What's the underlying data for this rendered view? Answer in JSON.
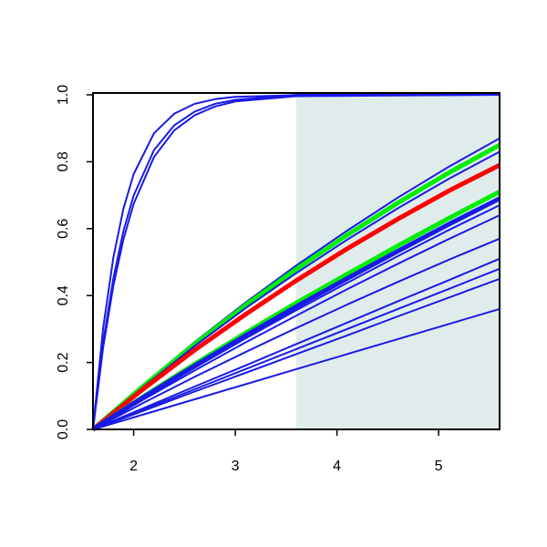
{
  "chart_data": {
    "type": "line",
    "x": [
      1.6,
      2.1,
      2.6,
      3.1,
      3.6,
      4.1,
      4.6,
      5.1,
      5.6
    ],
    "xlim": [
      1.6,
      5.6
    ],
    "ylim": [
      0,
      1
    ],
    "xticks": [
      2,
      3,
      4,
      5
    ],
    "yticks": [
      {
        "value": 0,
        "label": "0.0"
      },
      0.2,
      0.4,
      0.6,
      0.8,
      {
        "value": 1,
        "label": "1.0"
      }
    ],
    "shaded_region": {
      "xlim": [
        3.6,
        5.6
      ],
      "color": "#e0ecec"
    },
    "series": [
      {
        "color": "#1a1ae6",
        "x": [
          1.6,
          1.7,
          1.8,
          1.9,
          2.0,
          2.2,
          2.4,
          2.6,
          2.8,
          3.0,
          3.6,
          5.6
        ],
        "values": [
          0,
          0.302,
          0.513,
          0.66,
          0.763,
          0.885,
          0.944,
          0.973,
          0.987,
          0.994,
          0.999,
          1.0
        ]
      },
      {
        "color": "#1a1ae6",
        "x": [
          1.6,
          1.7,
          1.8,
          1.9,
          2.0,
          2.2,
          2.4,
          2.6,
          2.8,
          3.0,
          3.6,
          5.6
        ],
        "values": [
          0,
          0.259,
          0.451,
          0.593,
          0.699,
          0.835,
          0.909,
          0.95,
          0.973,
          0.985,
          1.0,
          1.0
        ]
      },
      {
        "color": "#1a1ae6",
        "x": [
          1.6,
          1.7,
          1.8,
          1.9,
          2.0,
          2.2,
          2.4,
          2.6,
          2.8,
          3.0,
          3.6,
          5.6
        ],
        "values": [
          0,
          0.244,
          0.429,
          0.568,
          0.674,
          0.814,
          0.894,
          0.939,
          0.965,
          0.98,
          0.996,
          1.0
        ]
      },
      {
        "color": "#1a1ae6",
        "values": [
          0,
          0.134,
          0.261,
          0.379,
          0.49,
          0.594,
          0.693,
          0.785,
          0.87
        ]
      },
      {
        "color": "#00ee00",
        "emphasis": true,
        "values": [
          0,
          0.131,
          0.255,
          0.371,
          0.479,
          0.581,
          0.677,
          0.767,
          0.85
        ]
      },
      {
        "color": "#1a1ae6",
        "values": [
          0,
          0.128,
          0.249,
          0.362,
          0.467,
          0.567,
          0.661,
          0.749,
          0.83
        ]
      },
      {
        "color": "#ff0000",
        "emphasis": true,
        "values": [
          0,
          0.122,
          0.237,
          0.344,
          0.445,
          0.54,
          0.629,
          0.713,
          0.79
        ]
      },
      {
        "color": "#00ee00",
        "emphasis": true,
        "values": [
          0,
          0.099,
          0.195,
          0.288,
          0.378,
          0.464,
          0.549,
          0.631,
          0.71
        ]
      },
      {
        "color": "#1a1ae6",
        "emphasis": true,
        "values": [
          0,
          0.097,
          0.19,
          0.28,
          0.367,
          0.451,
          0.533,
          0.613,
          0.69
        ]
      },
      {
        "color": "#1a1ae6",
        "values": [
          0,
          0.094,
          0.184,
          0.272,
          0.356,
          0.438,
          0.518,
          0.596,
          0.67
        ]
      },
      {
        "color": "#1a1ae6",
        "values": [
          0,
          0.09,
          0.176,
          0.26,
          0.34,
          0.419,
          0.495,
          0.569,
          0.64
        ]
      },
      {
        "color": "#1a1ae6",
        "values": [
          0,
          0.08,
          0.157,
          0.231,
          0.303,
          0.373,
          0.441,
          0.507,
          0.57
        ]
      },
      {
        "color": "#1a1ae6",
        "values": [
          0,
          0.064,
          0.128,
          0.191,
          0.255,
          0.319,
          0.383,
          0.446,
          0.51
        ]
      },
      {
        "color": "#1a1ae6",
        "values": [
          0,
          0.06,
          0.12,
          0.18,
          0.24,
          0.3,
          0.36,
          0.42,
          0.48
        ]
      },
      {
        "color": "#1a1ae6",
        "values": [
          0,
          0.056,
          0.113,
          0.169,
          0.225,
          0.281,
          0.338,
          0.394,
          0.45
        ]
      },
      {
        "color": "#1a1ae6",
        "values": [
          0,
          0.045,
          0.09,
          0.135,
          0.18,
          0.225,
          0.27,
          0.315,
          0.36
        ]
      }
    ]
  }
}
